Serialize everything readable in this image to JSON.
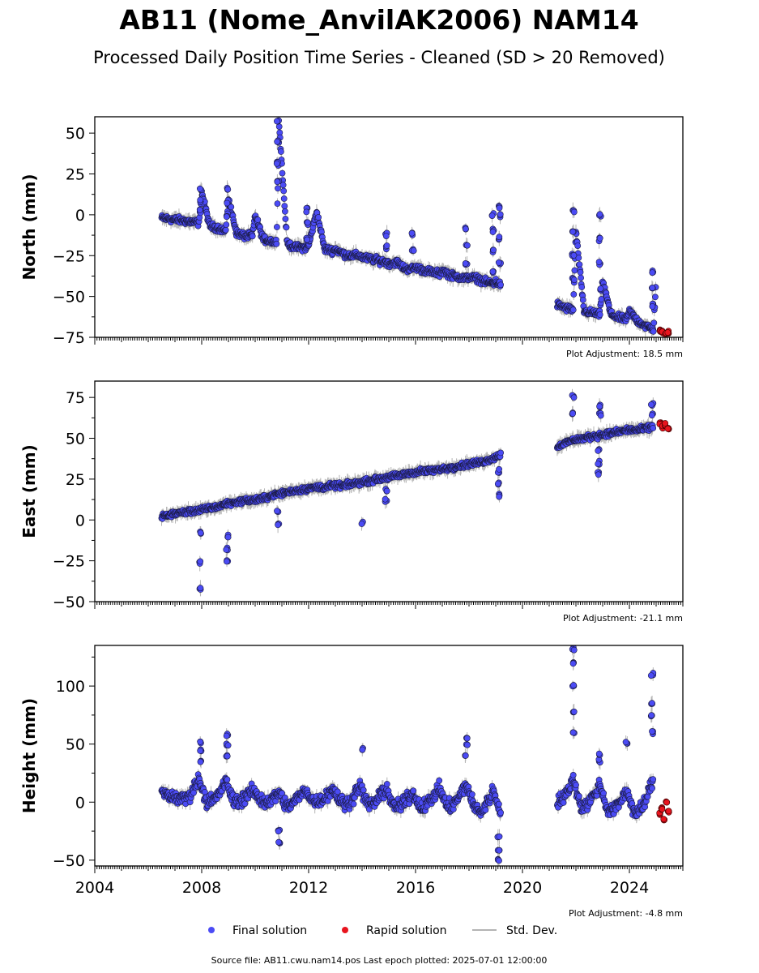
{
  "header": {
    "title": "AB11 (Nome_AnvilAK2006) NAM14",
    "subtitle": "Processed Daily Position Time Series - Cleaned (SD > 20 Removed)"
  },
  "legend": {
    "final": "Final solution",
    "rapid": "Rapid solution",
    "std": "Std. Dev."
  },
  "footer": {
    "source": "Source file: AB11.cwu.nam14.pos  Last epoch plotted: 2025-07-01 12:00:00"
  },
  "colors": {
    "final": "#4b4bf5",
    "rapid": "#e8141e",
    "std": "#b4b4b4"
  },
  "chart_data": [
    {
      "type": "scatter",
      "ylabel": "North (mm)",
      "adjustment": "Plot Adjustment: 18.5 mm",
      "xlim": [
        2004,
        2026
      ],
      "ylim": [
        -75,
        60
      ],
      "yticks": [
        -75,
        -50,
        -25,
        0,
        25,
        50
      ],
      "series": [
        {
          "name": "Final solution",
          "x": [
            2006.5,
            2007.0,
            2007.5,
            2007.9,
            2008.0,
            2008.3,
            2008.6,
            2008.9,
            2009.0,
            2009.3,
            2009.6,
            2009.9,
            2010.0,
            2010.3,
            2010.6,
            2010.8,
            2010.9,
            2011.0,
            2011.2,
            2011.5,
            2011.9,
            2012.0,
            2012.3,
            2012.6,
            2012.9,
            2013.0,
            2013.3,
            2013.6,
            2013.9,
            2014.0,
            2014.3,
            2014.6,
            2014.9,
            2015.0,
            2015.3,
            2015.6,
            2015.9,
            2016.0,
            2016.3,
            2016.6,
            2016.9,
            2017.0,
            2017.3,
            2017.6,
            2017.9,
            2018.0,
            2018.3,
            2018.6,
            2018.9,
            2019.0,
            2019.2,
            2021.3,
            2021.6,
            2021.9,
            2022.0,
            2022.3,
            2022.6,
            2022.9,
            2023.0,
            2023.3,
            2023.6,
            2023.9,
            2024.0,
            2024.3,
            2024.6,
            2024.9,
            2025.0
          ],
          "y": [
            -2,
            -3,
            -4,
            -5,
            14,
            -7,
            -8,
            -10,
            10,
            -11,
            -13,
            -13,
            0,
            -15,
            -16,
            -17,
            55,
            30,
            -18,
            -20,
            -20,
            -19,
            2,
            -21,
            -22,
            -21,
            -24,
            -25,
            -25,
            -26,
            -27,
            -28,
            -29,
            -30,
            -29,
            -33,
            -33,
            -32,
            -34,
            -35,
            -36,
            -34,
            -37,
            -38,
            -39,
            -38,
            -39,
            -41,
            -42,
            -41,
            -43,
            -55,
            -57,
            -58,
            -10,
            -59,
            -60,
            -61,
            -40,
            -61,
            -63,
            -64,
            -59,
            -65,
            -68,
            -70,
            -40
          ],
          "spread": 3,
          "spikes": [
            {
              "x": 2007.95,
              "y": [
                2,
                8,
                15
              ]
            },
            {
              "x": 2008.95,
              "y": [
                0,
                8,
                16
              ]
            },
            {
              "x": 2010.85,
              "y": [
                20,
                32,
                45,
                58
              ]
            },
            {
              "x": 2011.95,
              "y": [
                -15,
                -5,
                3
              ]
            },
            {
              "x": 2014.9,
              "y": [
                -20,
                -12
              ]
            },
            {
              "x": 2015.9,
              "y": [
                -22,
                -12
              ]
            },
            {
              "x": 2017.9,
              "y": [
                -30,
                -18,
                -8
              ]
            },
            {
              "x": 2018.9,
              "y": [
                -35,
                -22,
                -10,
                0
              ]
            },
            {
              "x": 2019.15,
              "y": [
                -30,
                -15,
                0,
                5
              ]
            },
            {
              "x": 2021.9,
              "y": [
                -40,
                -25,
                -10,
                2
              ]
            },
            {
              "x": 2022.9,
              "y": [
                -45,
                -30,
                -15,
                0
              ]
            },
            {
              "x": 2024.85,
              "y": [
                -55,
                -45,
                -35
              ]
            }
          ]
        },
        {
          "name": "Rapid solution",
          "x": [
            2025.15,
            2025.25,
            2025.35,
            2025.45
          ],
          "y": [
            -71,
            -72,
            -73,
            -72
          ]
        }
      ]
    },
    {
      "type": "scatter",
      "ylabel": "East (mm)",
      "adjustment": "Plot Adjustment: -21.1 mm",
      "xlim": [
        2004,
        2026
      ],
      "ylim": [
        -50,
        85
      ],
      "yticks": [
        -50,
        -25,
        0,
        25,
        50,
        75
      ],
      "series": [
        {
          "name": "Final solution",
          "x": [
            2006.5,
            2007.0,
            2007.5,
            2007.9,
            2008.3,
            2008.6,
            2008.9,
            2009.3,
            2009.6,
            2009.9,
            2010.3,
            2010.6,
            2010.9,
            2011.2,
            2011.5,
            2011.9,
            2012.3,
            2012.6,
            2012.9,
            2013.3,
            2013.6,
            2013.9,
            2014.3,
            2014.6,
            2014.9,
            2015.3,
            2015.6,
            2015.9,
            2016.3,
            2016.6,
            2016.9,
            2017.3,
            2017.6,
            2017.9,
            2018.3,
            2018.6,
            2018.9,
            2019.2,
            2021.3,
            2021.6,
            2021.9,
            2022.3,
            2022.6,
            2022.9,
            2023.3,
            2023.6,
            2023.9,
            2024.3,
            2024.6,
            2024.9
          ],
          "y": [
            2,
            4,
            5,
            6,
            7,
            8,
            10,
            11,
            12,
            12,
            13,
            15,
            16,
            17,
            18,
            19,
            20,
            20,
            21,
            21,
            22,
            23,
            24,
            25,
            26,
            27,
            28,
            29,
            30,
            30,
            31,
            32,
            33,
            34,
            35,
            36,
            38,
            40,
            45,
            47,
            49,
            50,
            51,
            52,
            53,
            54,
            55,
            55,
            56,
            57
          ],
          "spread": 2.5,
          "spikes": [
            {
              "x": 2007.95,
              "y": [
                -42,
                -26,
                -8
              ]
            },
            {
              "x": 2008.95,
              "y": [
                -25,
                -18,
                -10
              ]
            },
            {
              "x": 2010.85,
              "y": [
                -3,
                5
              ]
            },
            {
              "x": 2014.0,
              "y": [
                -2
              ]
            },
            {
              "x": 2014.9,
              "y": [
                12,
                18
              ]
            },
            {
              "x": 2019.1,
              "y": [
                15,
                22,
                30
              ]
            },
            {
              "x": 2021.9,
              "y": [
                65,
                75
              ]
            },
            {
              "x": 2022.85,
              "y": [
                28,
                35,
                42
              ]
            },
            {
              "x": 2022.9,
              "y": [
                65,
                70
              ]
            },
            {
              "x": 2024.85,
              "y": [
                65,
                70
              ]
            }
          ]
        },
        {
          "name": "Rapid solution",
          "x": [
            2025.15,
            2025.25,
            2025.35,
            2025.45
          ],
          "y": [
            59,
            57,
            58,
            56
          ]
        }
      ]
    },
    {
      "type": "scatter",
      "ylabel": "Height (mm)",
      "adjustment": "Plot Adjustment: -4.8 mm",
      "xlim": [
        2004,
        2026
      ],
      "ylim": [
        -55,
        135
      ],
      "yticks": [
        -50,
        0,
        50,
        100
      ],
      "xticks": [
        2004,
        2008,
        2012,
        2016,
        2020,
        2024
      ],
      "xtick_labels": [
        "2004",
        "2008",
        "2012",
        "2016",
        "2020",
        "2024"
      ],
      "series": [
        {
          "name": "Final solution",
          "x": [
            2006.5,
            2006.8,
            2007.2,
            2007.5,
            2007.9,
            2008.2,
            2008.5,
            2008.9,
            2009.2,
            2009.5,
            2009.9,
            2010.2,
            2010.5,
            2010.9,
            2011.2,
            2011.5,
            2011.9,
            2012.2,
            2012.5,
            2012.9,
            2013.2,
            2013.5,
            2013.9,
            2014.2,
            2014.5,
            2014.9,
            2015.2,
            2015.5,
            2015.9,
            2016.2,
            2016.5,
            2016.9,
            2017.2,
            2017.5,
            2017.9,
            2018.2,
            2018.5,
            2018.9,
            2019.2,
            2021.3,
            2021.6,
            2021.9,
            2022.2,
            2022.5,
            2022.9,
            2023.2,
            2023.5,
            2023.9,
            2024.2,
            2024.5,
            2024.9
          ],
          "y": [
            8,
            5,
            3,
            4,
            20,
            0,
            2,
            18,
            0,
            2,
            10,
            2,
            0,
            8,
            -5,
            2,
            10,
            0,
            2,
            12,
            0,
            -2,
            15,
            -2,
            0,
            12,
            -5,
            -2,
            8,
            -5,
            0,
            12,
            -5,
            0,
            15,
            -5,
            -8,
            10,
            -10,
            0,
            5,
            20,
            -5,
            0,
            15,
            -8,
            -5,
            10,
            -10,
            -5,
            20
          ],
          "spread": 8,
          "spikes": [
            {
              "x": 2007.95,
              "y": [
                35,
                45,
                52
              ]
            },
            {
              "x": 2008.95,
              "y": [
                40,
                50,
                58
              ]
            },
            {
              "x": 2010.9,
              "y": [
                -25,
                -35
              ]
            },
            {
              "x": 2014.0,
              "y": [
                46
              ]
            },
            {
              "x": 2017.9,
              "y": [
                40,
                50,
                55
              ]
            },
            {
              "x": 2019.1,
              "y": [
                -30,
                -42,
                -50
              ]
            },
            {
              "x": 2021.9,
              "y": [
                60,
                78,
                100,
                120,
                132
              ]
            },
            {
              "x": 2022.9,
              "y": [
                35,
                42
              ]
            },
            {
              "x": 2023.9,
              "y": [
                51
              ]
            },
            {
              "x": 2024.85,
              "y": [
                60,
                75,
                85,
                110
              ]
            }
          ]
        },
        {
          "name": "Rapid solution",
          "x": [
            2025.15,
            2025.22,
            2025.3,
            2025.38,
            2025.45
          ],
          "y": [
            -10,
            -5,
            -15,
            0,
            -8
          ]
        }
      ]
    }
  ]
}
